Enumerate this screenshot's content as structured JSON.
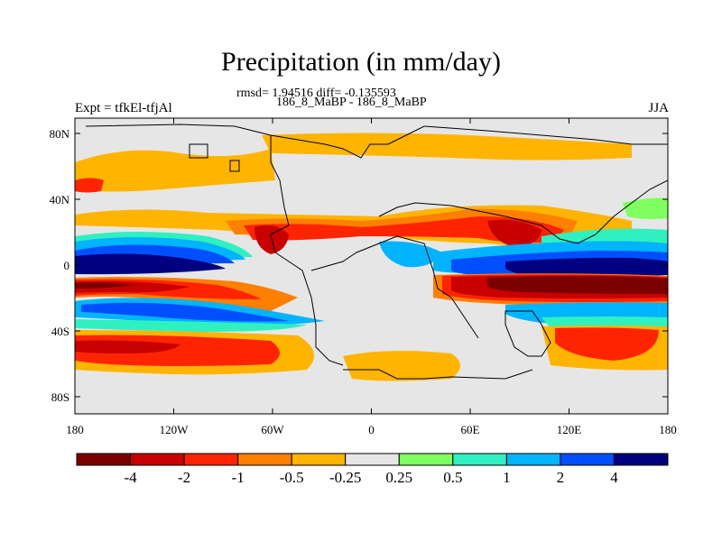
{
  "header": {
    "title": "Precipitation (in mm/day)",
    "stats": "rmsd= 1.94516 diff= -0.135593",
    "subtitle": "186_8_MaBP - 186_8_MaBP",
    "left_label": "Expt = tfkEl-tfjAl",
    "right_label": "JJA"
  },
  "map": {
    "lon_ticks": [
      "180",
      "120W",
      "60W",
      "0",
      "60E",
      "120E",
      "180"
    ],
    "lat_ticks": [
      "80N",
      "40N",
      "0",
      "40S",
      "80S"
    ],
    "background_color": "#e6e6e6"
  },
  "colorbar": {
    "colors": [
      "#7d0000",
      "#c80000",
      "#ff2400",
      "#ff7f00",
      "#ffb400",
      "#e6e6e6",
      "#80ff60",
      "#30f0c0",
      "#00b4ff",
      "#0050ff",
      "#000080"
    ],
    "labels": [
      "-4",
      "-2",
      "-1",
      "-0.5",
      "-0.25",
      "0.25",
      "0.5",
      "1",
      "2",
      "4"
    ]
  }
}
